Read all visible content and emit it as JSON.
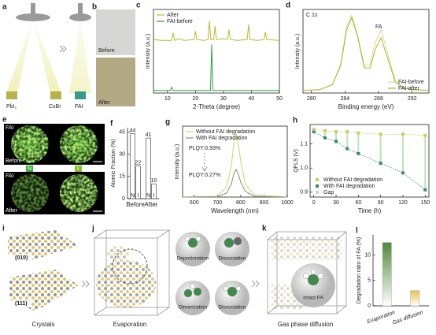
{
  "illustrations": {
    "a": {
      "panel": "a",
      "sources": [
        "PbI₂",
        "CsBr"
      ],
      "target": "FAI"
    },
    "b": {
      "panel": "b",
      "before": "Before",
      "after": "After"
    },
    "e": {
      "panel": "e",
      "rows": [
        {
          "tag": "FAI",
          "state": "Before"
        },
        {
          "tag": "FAI",
          "state": "After"
        }
      ],
      "channels": [
        "N",
        "I"
      ]
    },
    "i": {
      "panel": "i",
      "facets": [
        "(010)",
        "(111)"
      ],
      "caption": "Crystals"
    },
    "j": {
      "panel": "j",
      "caption": "Evaporation",
      "processes": [
        "Deprotonation",
        "Dissociation",
        "Dimerization",
        "Dissociation"
      ]
    },
    "k": {
      "panel": "k",
      "caption": "Gas phase diffusion",
      "inset": "Intact FA"
    }
  },
  "chart_data": [
    {
      "panel": "c",
      "type": "line",
      "xlabel": "2-Theta (degree)",
      "ylabel": "Intensity (a.u.)",
      "xlim": [
        5,
        50
      ],
      "xticks": [
        10,
        20,
        30,
        40,
        50
      ],
      "ylim": [
        0,
        10
      ],
      "legend": "upper left",
      "series": [
        {
          "name": "After",
          "color": "#b8bc2a",
          "x": [
            5,
            8,
            11.5,
            12,
            12.5,
            14,
            16,
            19.5,
            20,
            20.5,
            23,
            24.5,
            25,
            25.5,
            26.5,
            27,
            27.5,
            30,
            31.5,
            32,
            32.5,
            35,
            38.5,
            39,
            39.5,
            42,
            44.5,
            45,
            45.5,
            50
          ],
          "values": [
            6.4,
            6.3,
            6.3,
            7.2,
            6.3,
            6.5,
            6.3,
            6.4,
            7.4,
            6.4,
            6.3,
            6.4,
            8.6,
            6.4,
            6.4,
            8.0,
            6.4,
            6.5,
            6.4,
            7.6,
            6.4,
            6.3,
            6.4,
            8.2,
            6.4,
            6.3,
            6.4,
            7.3,
            6.4,
            6.3
          ]
        },
        {
          "name": "FAI-before",
          "color": "#2e9e3e",
          "x": [
            5,
            11,
            11.5,
            12,
            25,
            25.4,
            25.8,
            26.2,
            26.6,
            40,
            50
          ],
          "values": [
            0.3,
            0.3,
            0.7,
            0.3,
            0.3,
            0.3,
            5.8,
            0.3,
            0.3,
            0.3,
            0.3
          ]
        }
      ]
    },
    {
      "panel": "d",
      "type": "line",
      "title": "C 1s",
      "annotations": [
        "FA"
      ],
      "xlabel": "Binding energy (eV)",
      "ylabel": "Intensity (a.u.)",
      "xlim": [
        279,
        294
      ],
      "xticks": [
        280,
        284,
        288,
        292
      ],
      "ylim": [
        0,
        10
      ],
      "legend": "lower right",
      "x": [
        279,
        281,
        282.5,
        283.5,
        284.2,
        284.8,
        285.5,
        286.3,
        287,
        287.6,
        288.3,
        289,
        290,
        291,
        292,
        294
      ],
      "series": [
        {
          "name": "FAI-before",
          "color": "#d9dc8e",
          "values": [
            0.3,
            0.4,
            1,
            3.5,
            8,
            9.3,
            7,
            3.2,
            3.5,
            6,
            7.6,
            5,
            1.5,
            0.6,
            0.4,
            0.3
          ]
        },
        {
          "name": "FAI-after",
          "color": "#b0b42a",
          "values": [
            0.3,
            0.4,
            1,
            3.3,
            7.6,
            9.0,
            6.8,
            3.0,
            3.0,
            5.2,
            6.6,
            4.4,
            1.3,
            0.6,
            0.4,
            0.3
          ]
        }
      ]
    },
    {
      "panel": "f",
      "type": "bar",
      "ylabel": "Atomic Fraction (%)",
      "categories": [
        "Before",
        "After"
      ],
      "ylim": [
        0,
        48
      ],
      "yticks": [
        0,
        15,
        30,
        45
      ],
      "series": [
        {
          "name": "N",
          "color": "#ffffff",
          "values": [
            44,
            41
          ]
        },
        {
          "name": "I",
          "color": "#ffffff",
          "values": [
            22,
            10
          ]
        }
      ]
    },
    {
      "panel": "g",
      "type": "line",
      "annotations": [
        {
          "text": "PLQY:0.93%",
          "color": "#c4c64a"
        },
        {
          "text": "PLQY:0.27%",
          "color": "#5c9c4c"
        }
      ],
      "xlabel": "Wavelength (nm)",
      "ylabel": "Intensity (a.u.)",
      "xlim": [
        550,
        1000
      ],
      "xticks": [
        600,
        700,
        800,
        900,
        1000
      ],
      "ylim": [
        0,
        10
      ],
      "legend": "upper left",
      "x": [
        550,
        700,
        740,
        760,
        770,
        780,
        790,
        800,
        820,
        860,
        1000
      ],
      "series": [
        {
          "name": "Without FAI degradation",
          "color": "#d2d46e",
          "values": [
            0,
            0.1,
            1.5,
            4.5,
            7.5,
            9,
            7.5,
            5,
            1.8,
            0.3,
            0
          ]
        },
        {
          "name": "With FAI degradation",
          "color": "#8c8c7a",
          "values": [
            0,
            0.05,
            0.6,
            1.9,
            3.2,
            3.9,
            3.2,
            2.1,
            0.8,
            0.1,
            0
          ]
        }
      ]
    },
    {
      "panel": "h",
      "type": "line",
      "xlabel": "Time (h)",
      "ylabel": "QFLS (V)",
      "xlim": [
        -5,
        155
      ],
      "xticks": [
        0,
        30,
        60,
        90,
        120,
        150
      ],
      "ylim": [
        0.88,
        1.18
      ],
      "yticks": [
        {
          "value": 0.9,
          "label": "0.9"
        },
        {
          "value": 1.0,
          "label": "1.0"
        },
        {
          "value": 1.1,
          "label": "1.1"
        }
      ],
      "legend": "lower left",
      "x": [
        0,
        15,
        30,
        45,
        60,
        90,
        120,
        150
      ],
      "series": [
        {
          "name": "Without FAI degradation",
          "color": "#c9cf5a",
          "marker": "square",
          "linestyle": "dotted",
          "values": [
            1.16,
            1.155,
            1.15,
            1.15,
            1.145,
            1.14,
            1.14,
            1.135
          ]
        },
        {
          "name": "With FAI degradation",
          "color": "#3a8a6a",
          "marker": "square",
          "linestyle": "dotted",
          "values": [
            1.15,
            1.125,
            1.11,
            1.08,
            1.06,
            1.02,
            0.98,
            0.91
          ]
        }
      ],
      "gap": {
        "name": "Gap",
        "color": "#bfe0b8"
      }
    },
    {
      "panel": "l",
      "type": "bar",
      "ylabel": "Degradation ratio of FA (%)",
      "categories": [
        "Evaporation",
        "Gas diffusion"
      ],
      "values": [
        12.5,
        3
      ],
      "colors": [
        "#4f8a3a",
        "#e6c24a"
      ],
      "ylim": [
        0,
        14
      ],
      "yticks": [
        0,
        5,
        10
      ]
    }
  ]
}
